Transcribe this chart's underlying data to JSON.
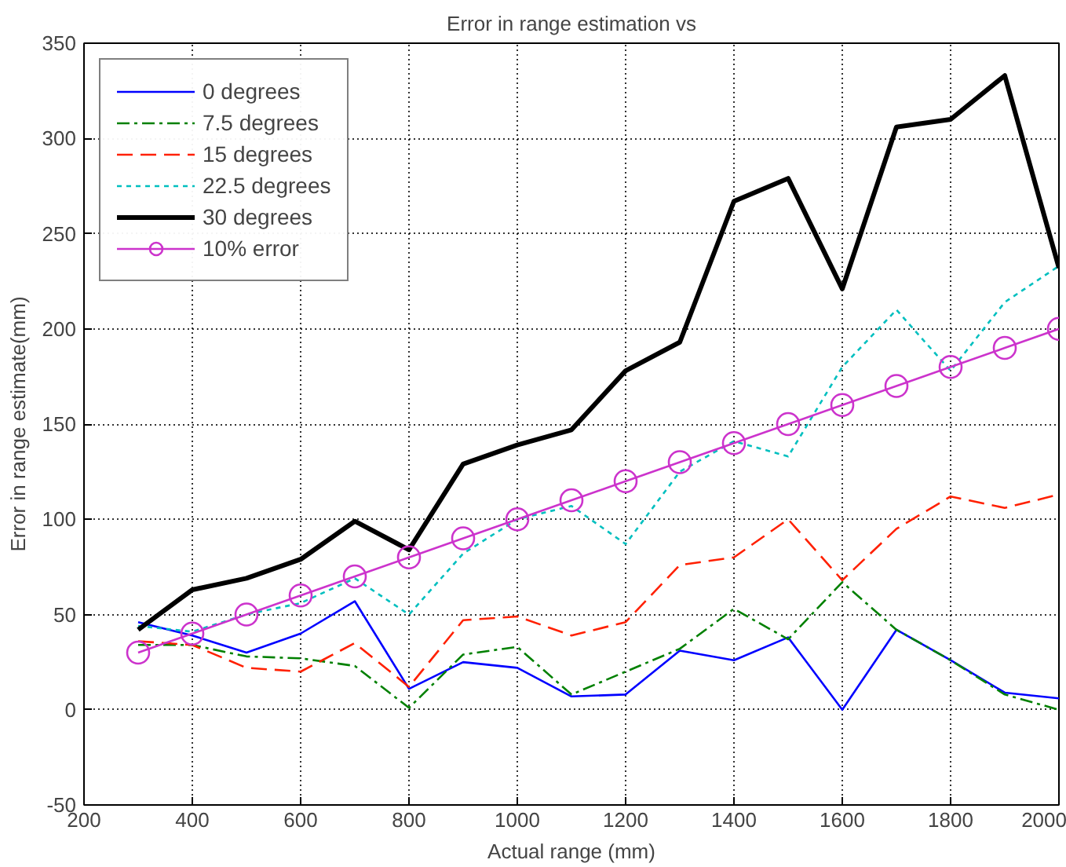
{
  "chart_data": {
    "type": "line",
    "title": "Error in range estimation vs",
    "xlabel": "Actual range (mm)",
    "ylabel": "Error in range estimate(mm)",
    "x": [
      300,
      400,
      500,
      600,
      700,
      800,
      900,
      1000,
      1100,
      1200,
      1300,
      1400,
      1500,
      1600,
      1700,
      1800,
      1900,
      2000
    ],
    "series": [
      {
        "name": "0 degrees",
        "color": "#0000ff",
        "line_style": "solid",
        "values": [
          46,
          39,
          30,
          40,
          57,
          11,
          25,
          22,
          7,
          8,
          31,
          26,
          38,
          0,
          42,
          26,
          9,
          6
        ]
      },
      {
        "name": "7.5 degrees",
        "color": "#008000",
        "line_style": "dashdot",
        "values": [
          34,
          34,
          28,
          27,
          23,
          1,
          29,
          33,
          8,
          20,
          32,
          53,
          37,
          67,
          42,
          26,
          8,
          0
        ]
      },
      {
        "name": "15 degrees",
        "color": "#ff2000",
        "line_style": "dashed",
        "values": [
          36,
          34,
          22,
          20,
          35,
          12,
          47,
          49,
          39,
          46,
          76,
          80,
          100,
          68,
          95,
          112,
          106,
          113
        ]
      },
      {
        "name": "22.5 degrees",
        "color": "#00bfbf",
        "line_style": "dotted",
        "values": [
          44,
          41,
          50,
          56,
          69,
          50,
          82,
          100,
          107,
          87,
          125,
          141,
          133,
          180,
          210,
          178,
          214,
          233
        ]
      },
      {
        "name": "30 degrees",
        "color": "#000000",
        "line_style": "solid",
        "values": [
          42,
          63,
          69,
          79,
          99,
          84,
          129,
          139,
          147,
          178,
          193,
          267,
          279,
          221,
          306,
          310,
          333,
          232
        ]
      },
      {
        "name": "10% error",
        "color": "#cc33cc",
        "line_style": "solid",
        "marker": "circle",
        "values": [
          30,
          40,
          50,
          60,
          70,
          80,
          90,
          100,
          110,
          120,
          130,
          140,
          150,
          160,
          170,
          180,
          190,
          200
        ]
      }
    ],
    "xlim": [
      200,
      2000
    ],
    "ylim": [
      -50,
      350
    ],
    "xticks": [
      200,
      400,
      600,
      800,
      1000,
      1200,
      1400,
      1600,
      1800,
      2000
    ],
    "yticks": [
      -50,
      0,
      50,
      100,
      150,
      200,
      250,
      300,
      350
    ],
    "grid": true,
    "legend": "top left"
  }
}
